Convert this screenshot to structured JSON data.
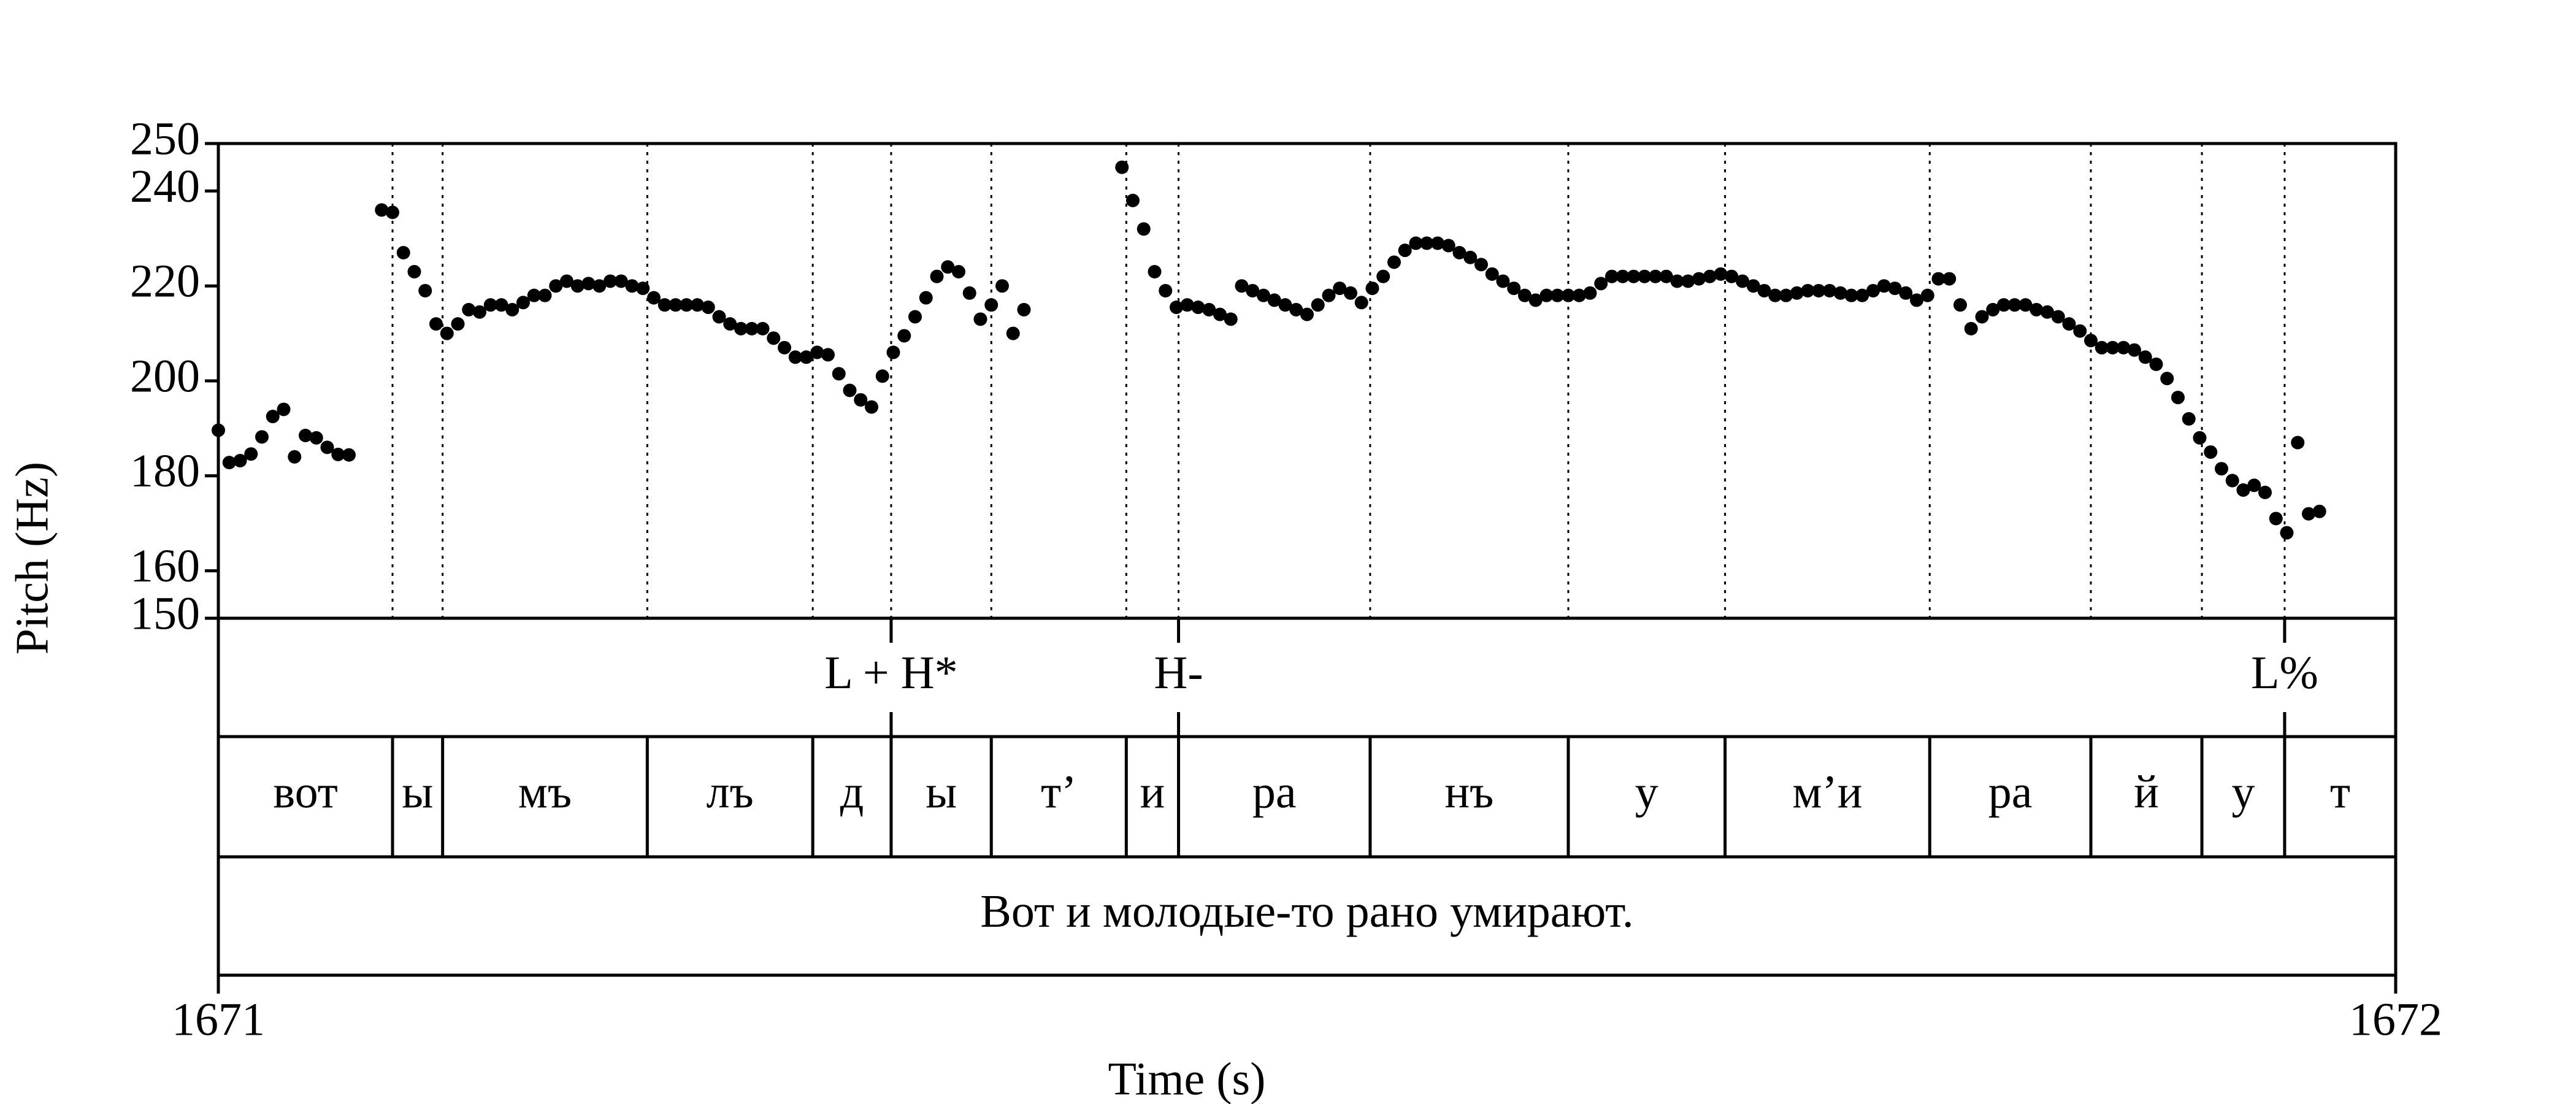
{
  "chart_data": {
    "type": "scatter",
    "xlabel": "Time (s)",
    "ylabel": "Pitch (Hz)",
    "xlim": [
      1671,
      1672
    ],
    "xticks": [
      1671,
      1672
    ],
    "ylim": [
      150,
      250
    ],
    "yticks": [
      150,
      160,
      180,
      200,
      220,
      240,
      250
    ],
    "color": "#000000",
    "x": [
      1671.0,
      1671.005,
      1671.01,
      1671.015,
      1671.02,
      1671.025,
      1671.03,
      1671.035,
      1671.04,
      1671.045,
      1671.05,
      1671.055,
      1671.06,
      1671.075,
      1671.08,
      1671.085,
      1671.09,
      1671.095,
      1671.1,
      1671.105,
      1671.11,
      1671.115,
      1671.12,
      1671.125,
      1671.13,
      1671.135,
      1671.14,
      1671.145,
      1671.15,
      1671.155,
      1671.16,
      1671.165,
      1671.17,
      1671.175,
      1671.18,
      1671.185,
      1671.19,
      1671.195,
      1671.2,
      1671.205,
      1671.21,
      1671.215,
      1671.22,
      1671.225,
      1671.23,
      1671.235,
      1671.24,
      1671.245,
      1671.25,
      1671.255,
      1671.26,
      1671.265,
      1671.27,
      1671.275,
      1671.28,
      1671.285,
      1671.29,
      1671.295,
      1671.3,
      1671.305,
      1671.31,
      1671.315,
      1671.32,
      1671.325,
      1671.33,
      1671.335,
      1671.34,
      1671.345,
      1671.35,
      1671.355,
      1671.36,
      1671.365,
      1671.37,
      1671.415,
      1671.42,
      1671.425,
      1671.43,
      1671.435,
      1671.44,
      1671.445,
      1671.45,
      1671.455,
      1671.46,
      1671.465,
      1671.47,
      1671.475,
      1671.48,
      1671.485,
      1671.49,
      1671.495,
      1671.5,
      1671.505,
      1671.51,
      1671.515,
      1671.52,
      1671.525,
      1671.53,
      1671.535,
      1671.54,
      1671.545,
      1671.55,
      1671.555,
      1671.56,
      1671.565,
      1671.57,
      1671.575,
      1671.58,
      1671.585,
      1671.59,
      1671.595,
      1671.6,
      1671.605,
      1671.61,
      1671.615,
      1671.62,
      1671.625,
      1671.63,
      1671.635,
      1671.64,
      1671.645,
      1671.65,
      1671.655,
      1671.66,
      1671.665,
      1671.67,
      1671.675,
      1671.68,
      1671.685,
      1671.69,
      1671.695,
      1671.7,
      1671.705,
      1671.71,
      1671.715,
      1671.72,
      1671.725,
      1671.73,
      1671.735,
      1671.74,
      1671.745,
      1671.75,
      1671.755,
      1671.76,
      1671.765,
      1671.77,
      1671.775,
      1671.78,
      1671.785,
      1671.79,
      1671.795,
      1671.8,
      1671.805,
      1671.81,
      1671.815,
      1671.82,
      1671.825,
      1671.83,
      1671.835,
      1671.84,
      1671.845,
      1671.85,
      1671.855,
      1671.86,
      1671.865,
      1671.87,
      1671.875,
      1671.88,
      1671.885,
      1671.89,
      1671.895,
      1671.9,
      1671.905,
      1671.91,
      1671.915,
      1671.92,
      1671.925,
      1671.93,
      1671.935,
      1671.94,
      1671.945,
      1671.95,
      1671.955,
      1671.96,
      1671.965
    ],
    "values": [
      189.6,
      182.8,
      183.2,
      184.6,
      188.2,
      192.5,
      194,
      184,
      188.5,
      188,
      186,
      184.5,
      184.4,
      236,
      235.5,
      227,
      223,
      219,
      212,
      210,
      212,
      215,
      214.5,
      216,
      216,
      215,
      216.5,
      218,
      218,
      220,
      221,
      220,
      220.5,
      220,
      221,
      221,
      220,
      219.5,
      217.5,
      216,
      216,
      216,
      216,
      215.5,
      213.5,
      212,
      211,
      211,
      211,
      209,
      207,
      205,
      205,
      206,
      205.5,
      201.5,
      198,
      196,
      194.5,
      201,
      206,
      209.5,
      213.5,
      217.5,
      222,
      224,
      223,
      218.5,
      213,
      216,
      220,
      210,
      215,
      245,
      238,
      232,
      223,
      219,
      215.5,
      216,
      215.5,
      215,
      214,
      213,
      220,
      219,
      218,
      217,
      216,
      215,
      214,
      216,
      218,
      219.5,
      218.5,
      216.5,
      219.5,
      222,
      225,
      227.5,
      229,
      229,
      229,
      228.5,
      227,
      226,
      224.5,
      222.5,
      221,
      219.5,
      218,
      217,
      218,
      218,
      218,
      218,
      218.5,
      220.5,
      222,
      222,
      222,
      222,
      222,
      222,
      221,
      221,
      221.5,
      222,
      222.5,
      222,
      221,
      220,
      219,
      218,
      218,
      218.5,
      219,
      219,
      219,
      218.5,
      218,
      218,
      219,
      220,
      219.5,
      218.5,
      217,
      218,
      221.5,
      221.5,
      216,
      211,
      213.5,
      215,
      216,
      216,
      216,
      215,
      214.5,
      213.5,
      212,
      210.5,
      208.5,
      207,
      207,
      207,
      206.5,
      205,
      203.5,
      200.5,
      196.5,
      192,
      188,
      185,
      181.5,
      179,
      177,
      178,
      176.5,
      171,
      168,
      187,
      172,
      172.5
    ],
    "tones": {
      "times": [
        1671.309,
        1671.441,
        1671.949
      ],
      "labels": [
        "L + H*",
        "H-",
        "L%"
      ]
    },
    "syllables": {
      "boundaries": [
        1671.08,
        1671.103,
        1671.197,
        1671.273,
        1671.309,
        1671.355,
        1671.417,
        1671.441,
        1671.529,
        1671.62,
        1671.692,
        1671.786,
        1671.86,
        1671.911,
        1671.949
      ],
      "labels": [
        "вот",
        "ы",
        "мъ",
        "лъ",
        "д",
        "ы",
        "т’",
        "и",
        "ра",
        "нъ",
        "у",
        "м’и",
        "ра",
        "й",
        "у",
        "т"
      ]
    },
    "sentence": "Вот и молодые-то рано умирают."
  }
}
